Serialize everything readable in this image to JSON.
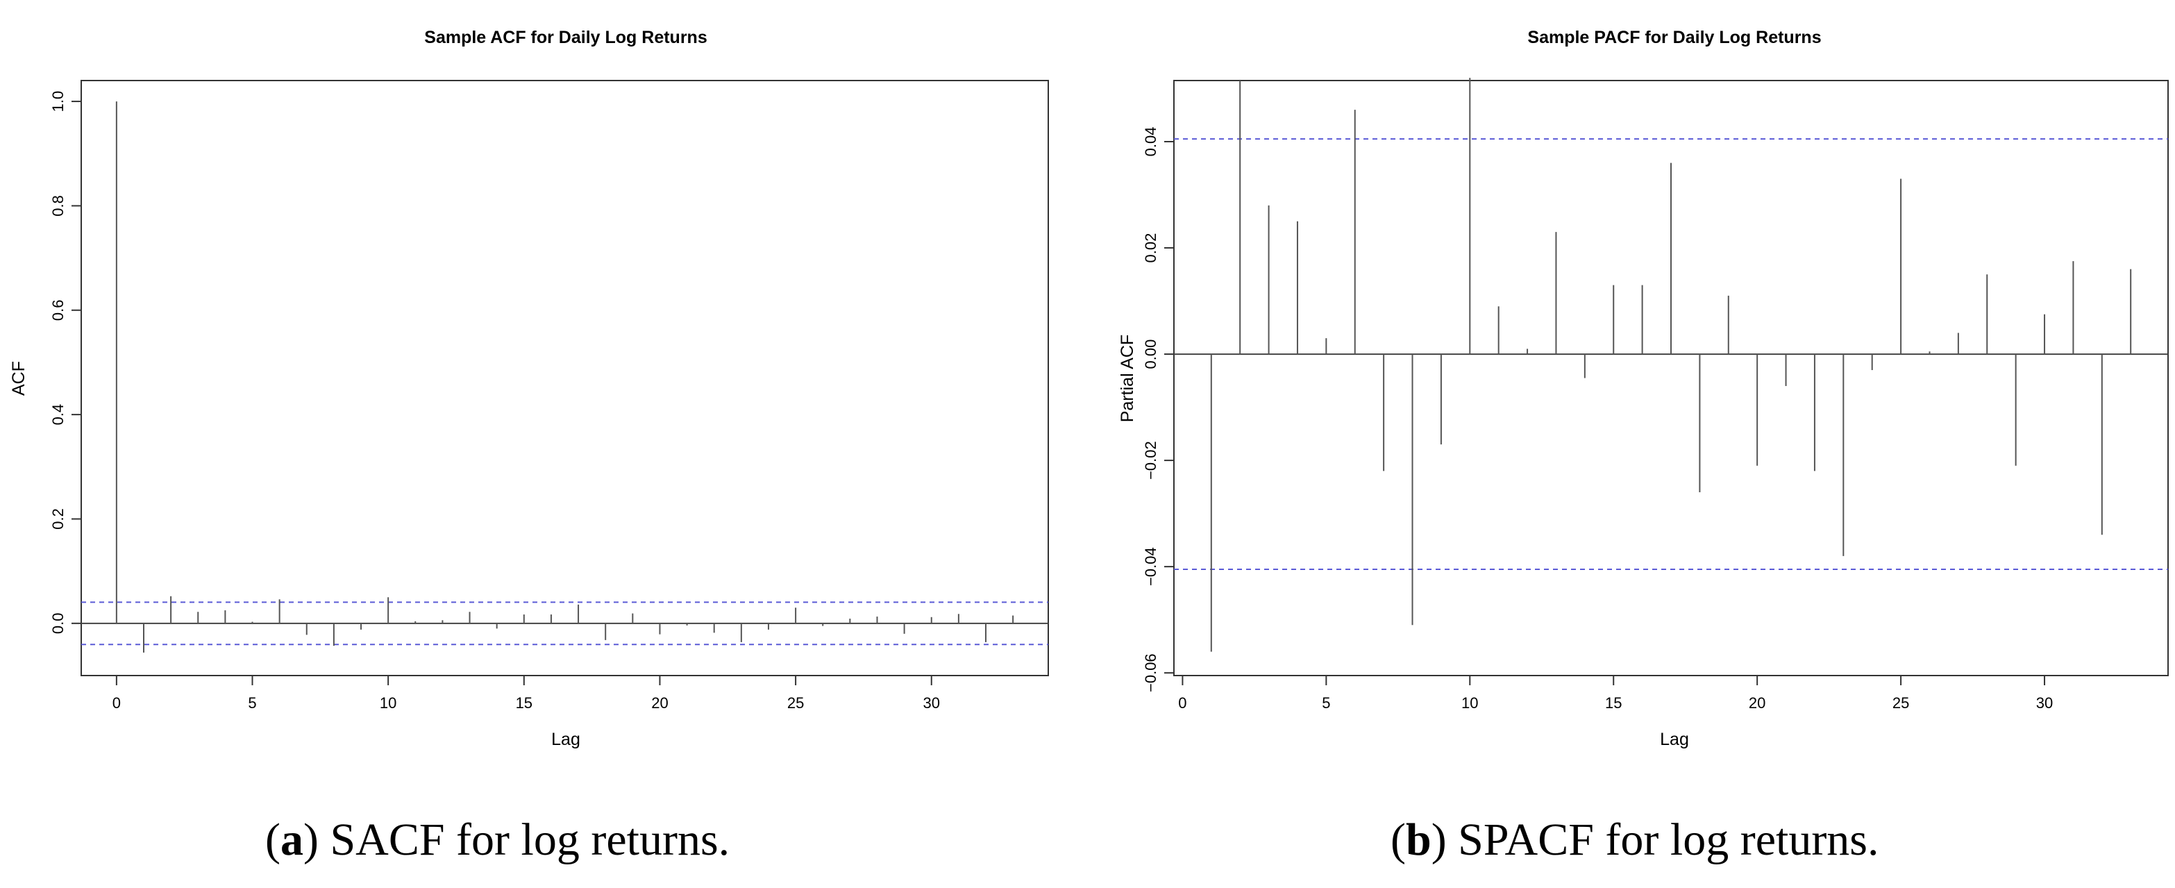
{
  "chart_data": [
    {
      "type": "bar",
      "title": "Sample ACF for Daily Log Returns",
      "xlabel": "Lag",
      "ylabel": "ACF",
      "xlim": [
        -1.3,
        34.3
      ],
      "ylim": [
        -0.1,
        1.04
      ],
      "xticks": [
        0,
        5,
        10,
        15,
        20,
        25,
        30
      ],
      "xtick_labels": [
        "0",
        "5",
        "10",
        "15",
        "20",
        "25",
        "30"
      ],
      "yticks": [
        0.0,
        0.2,
        0.4,
        0.6,
        0.8,
        1.0
      ],
      "ytick_labels": [
        "0.0",
        "0.2",
        "0.4",
        "0.6",
        "0.8",
        "1.0"
      ],
      "grid": false,
      "confidence_band": [
        0.0405,
        -0.0405
      ],
      "x": [
        0,
        1,
        2,
        3,
        4,
        5,
        6,
        7,
        8,
        9,
        10,
        11,
        12,
        13,
        14,
        15,
        16,
        17,
        18,
        19,
        20,
        21,
        22,
        23,
        24,
        25,
        26,
        27,
        28,
        29,
        30,
        31,
        32,
        33
      ],
      "values": [
        1.0,
        -0.056,
        0.052,
        0.022,
        0.025,
        0.003,
        0.046,
        -0.022,
        -0.043,
        -0.012,
        0.05,
        0.004,
        0.006,
        0.022,
        -0.01,
        0.017,
        0.017,
        0.036,
        -0.032,
        0.019,
        -0.021,
        -0.004,
        -0.018,
        -0.036,
        -0.012,
        0.03,
        -0.005,
        0.009,
        0.013,
        -0.02,
        0.012,
        0.018,
        -0.036,
        0.015
      ]
    },
    {
      "type": "bar",
      "title": "Sample PACF for Daily Log Returns",
      "xlabel": "Lag",
      "ylabel": "Partial ACF",
      "xlim": [
        -0.3,
        34.3
      ],
      "ylim": [
        -0.0605,
        0.0515
      ],
      "xticks": [
        0,
        5,
        10,
        15,
        20,
        25,
        30
      ],
      "xtick_labels": [
        "0",
        "5",
        "10",
        "15",
        "20",
        "25",
        "30"
      ],
      "yticks": [
        -0.06,
        -0.04,
        -0.02,
        0.0,
        0.02,
        0.04
      ],
      "ytick_labels": [
        "−0.06",
        "−0.04",
        "−0.02",
        "0.00",
        "0.02",
        "0.04"
      ],
      "grid": false,
      "confidence_band": [
        0.0405,
        -0.0405
      ],
      "x": [
        1,
        2,
        3,
        4,
        5,
        6,
        7,
        8,
        9,
        10,
        11,
        12,
        13,
        14,
        15,
        16,
        17,
        18,
        19,
        20,
        21,
        22,
        23,
        24,
        25,
        26,
        27,
        28,
        29,
        30,
        31,
        32,
        33
      ],
      "values": [
        -0.056,
        0.0515,
        0.028,
        0.025,
        0.003,
        0.046,
        -0.022,
        -0.051,
        -0.017,
        0.052,
        0.009,
        0.001,
        0.023,
        -0.0045,
        0.013,
        0.013,
        0.036,
        -0.026,
        0.011,
        -0.021,
        -0.006,
        -0.022,
        -0.038,
        -0.003,
        0.033,
        0.0005,
        0.004,
        0.015,
        -0.021,
        0.0075,
        0.0175,
        -0.034,
        0.016
      ]
    }
  ],
  "captions": [
    {
      "label": "a",
      "text": ") SACF for log returns."
    },
    {
      "label": "b",
      "text": ") SPACF for log returns."
    }
  ]
}
